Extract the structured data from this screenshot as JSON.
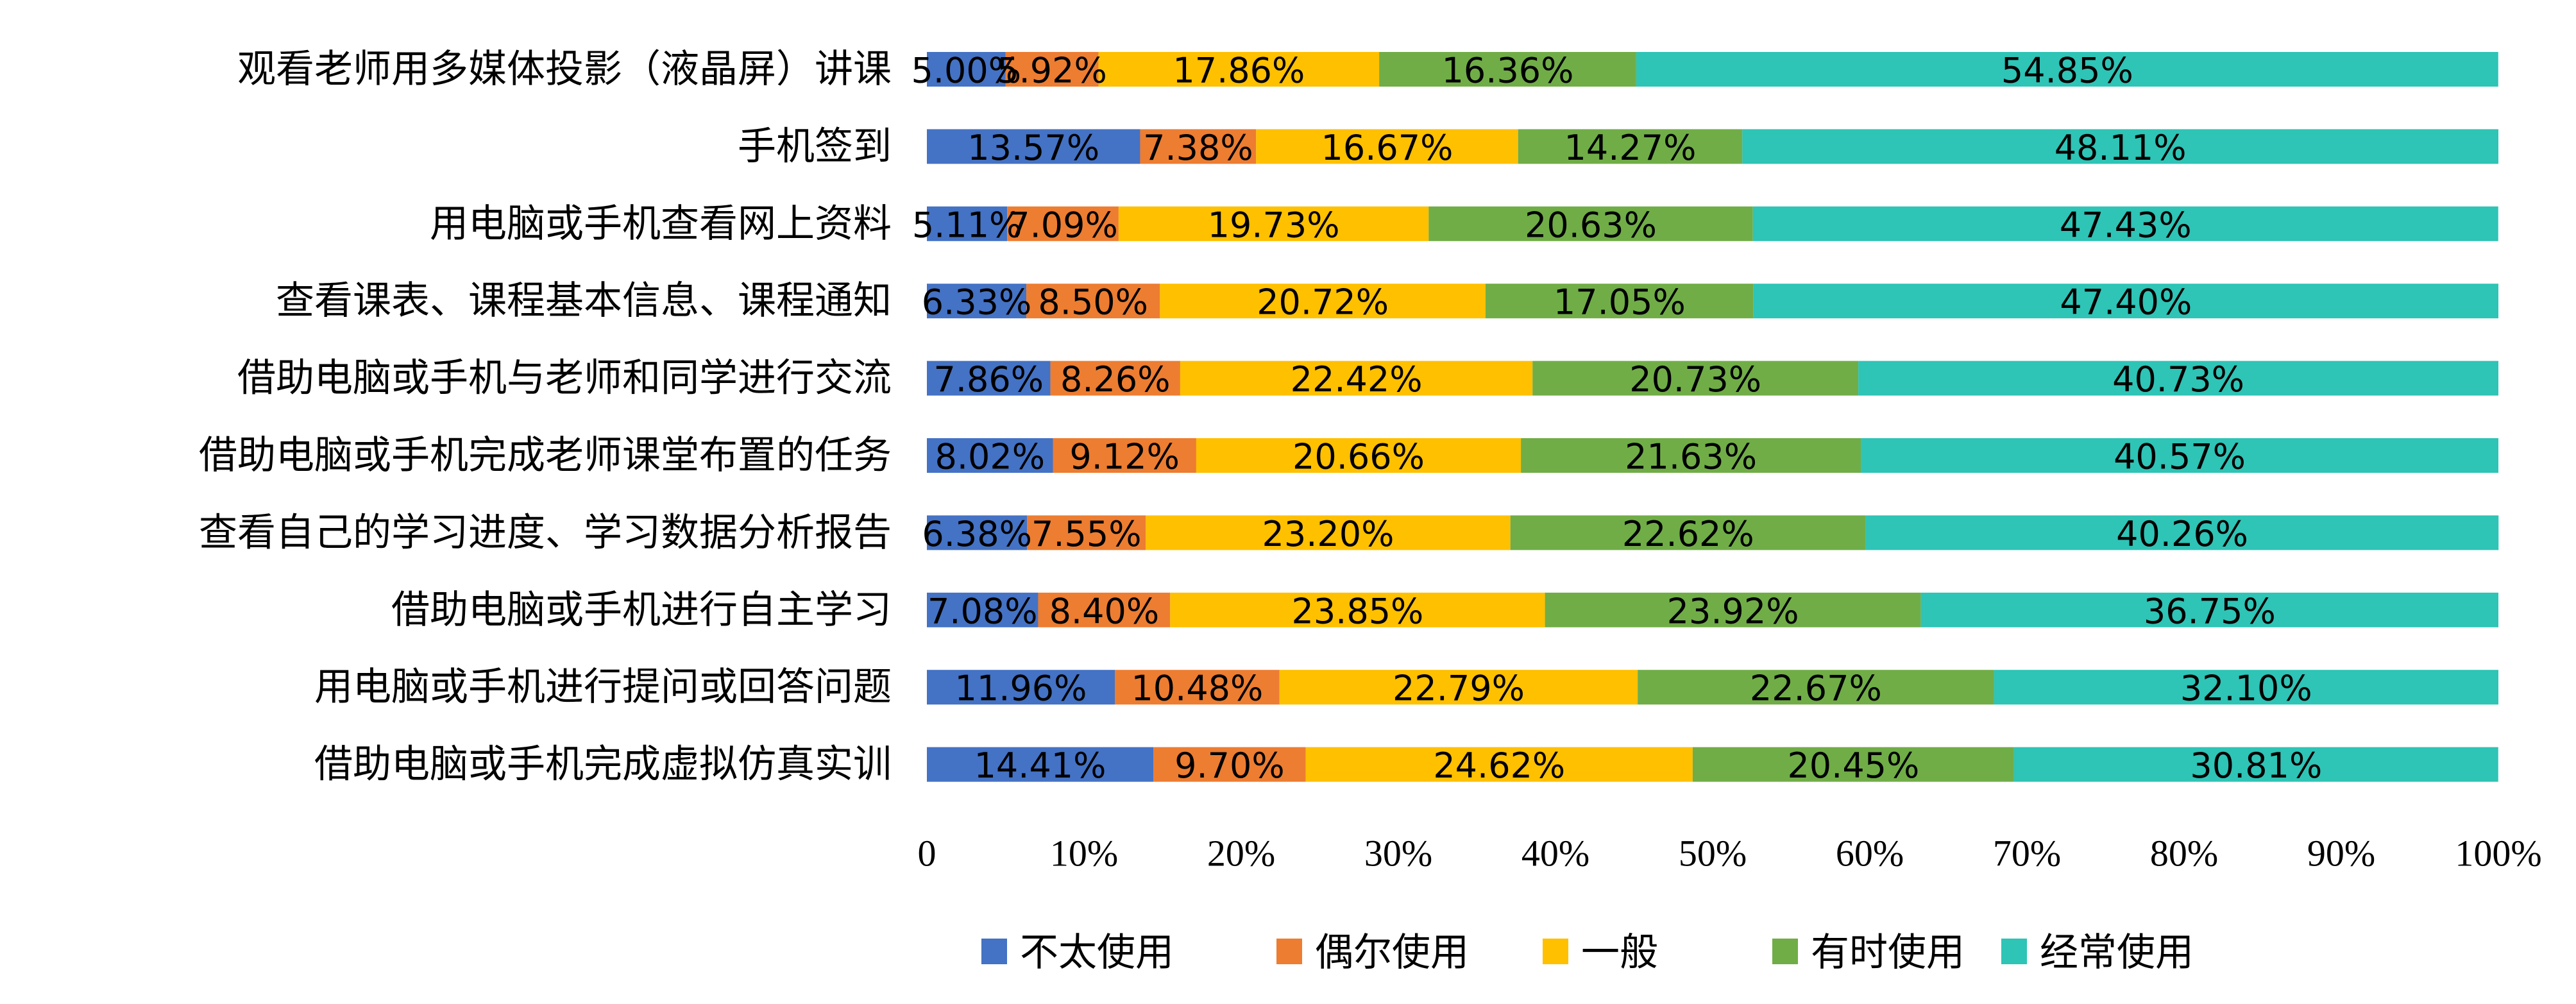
{
  "chart_data": {
    "type": "bar",
    "orientation": "horizontal",
    "stacked": true,
    "xlim": [
      0,
      100
    ],
    "x_ticks": [
      "0",
      "10%",
      "20%",
      "30%",
      "40%",
      "50%",
      "60%",
      "70%",
      "80%",
      "90%",
      "100%"
    ],
    "legend_position": "bottom",
    "grid": false,
    "categories": [
      "观看老师用多媒体投影（液晶屏）讲课",
      "手机签到",
      "用电脑或手机查看网上资料",
      "查看课表、课程基本信息、课程通知",
      "借助电脑或手机与老师和同学进行交流",
      "借助电脑或手机完成老师课堂布置的任务",
      "查看自己的学习进度、学习数据分析报告",
      "借助电脑或手机进行自主学习",
      "用电脑或手机进行提问或回答问题",
      "借助电脑或手机完成虚拟仿真实训"
    ],
    "series": [
      {
        "name": "不太使用",
        "color": "#4472C4",
        "values": [
          5.0,
          13.57,
          5.11,
          6.33,
          7.86,
          8.02,
          6.38,
          7.08,
          11.96,
          14.41
        ],
        "labels": [
          "5.00%",
          "13.57%",
          "5.11%",
          "6.33%",
          "7.86%",
          "8.02%",
          "6.38%",
          "7.08%",
          "11.96%",
          "14.41%"
        ]
      },
      {
        "name": "偶尔使用",
        "color": "#ED7D31",
        "values": [
          5.92,
          7.38,
          7.09,
          8.5,
          8.26,
          9.12,
          7.55,
          8.4,
          10.48,
          9.7
        ],
        "labels": [
          "5.92%",
          "7.38%",
          "7.09%",
          "8.50%",
          "8.26%",
          "9.12%",
          "7.55%",
          "8.40%",
          "10.48%",
          "9.70%"
        ]
      },
      {
        "name": "一般",
        "color": "#FFC000",
        "values": [
          17.86,
          16.67,
          19.73,
          20.72,
          22.42,
          20.66,
          23.2,
          23.85,
          22.79,
          24.62
        ],
        "labels": [
          "17.86%",
          "16.67%",
          "19.73%",
          "20.72%",
          "22.42%",
          "20.66%",
          "23.20%",
          "23.85%",
          "22.79%",
          "24.62%"
        ]
      },
      {
        "name": "有时使用",
        "color": "#70AD47",
        "values": [
          16.36,
          14.27,
          20.63,
          17.05,
          20.73,
          21.63,
          22.62,
          23.92,
          22.67,
          20.45
        ],
        "labels": [
          "16.36%",
          "14.27%",
          "20.63%",
          "17.05%",
          "20.73%",
          "21.63%",
          "22.62%",
          "23.92%",
          "22.67%",
          "20.45%"
        ]
      },
      {
        "name": "经常使用",
        "color": "#2EC4B6",
        "values": [
          54.85,
          48.11,
          47.43,
          47.4,
          40.73,
          40.57,
          40.26,
          36.75,
          32.1,
          30.81
        ],
        "labels": [
          "54.85%",
          "48.11%",
          "47.43%",
          "47.40%",
          "40.73%",
          "40.57%",
          "40.26%",
          "36.75%",
          "32.10%",
          "30.81%"
        ]
      }
    ]
  }
}
